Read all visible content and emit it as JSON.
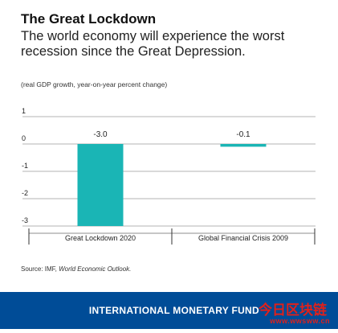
{
  "header": {
    "title": "The Great Lockdown",
    "subtitle": "The world economy will experience the worst recession since the Great Depression."
  },
  "note": "(real GDP growth, year-on-year percent change)",
  "source": {
    "prefix": "Source: IMF, ",
    "publication": "World Economic Outlook."
  },
  "footer": {
    "label": "INTERNATIONAL MONETARY FUND",
    "bg_color": "#004c97",
    "watermark_cn": "今日区块链",
    "watermark_url": "www.wwsww.cn"
  },
  "chart_data": {
    "type": "bar",
    "categories": [
      "Great Lockdown 2020",
      "Global Financial Crisis 2009"
    ],
    "values": [
      -3.0,
      -0.1
    ],
    "data_labels": [
      "-3.0",
      "-0.1"
    ],
    "yticks": [
      1,
      0,
      -1,
      -2,
      -3
    ],
    "ylim": [
      -3,
      1
    ],
    "grid": true,
    "bar_color": "#1ab5b5"
  }
}
